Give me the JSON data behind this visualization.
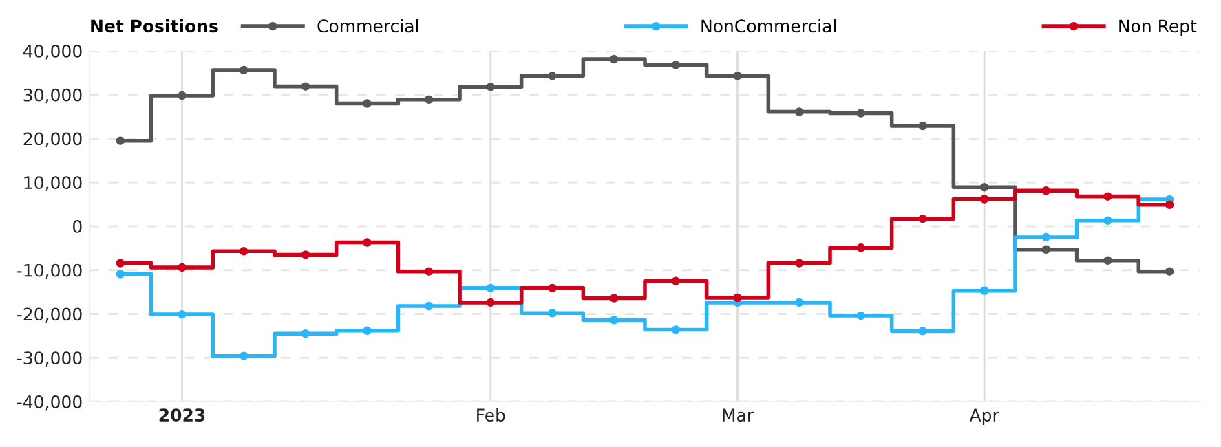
{
  "chart_data": {
    "type": "step",
    "legend_title": "Net Positions",
    "x": [
      "2022-12-27",
      "2023-01-03",
      "2023-01-10",
      "2023-01-17",
      "2023-01-24",
      "2023-01-31",
      "2023-02-07",
      "2023-02-14",
      "2023-02-21",
      "2023-02-28",
      "2023-03-07",
      "2023-03-14",
      "2023-03-21",
      "2023-03-28",
      "2023-04-04",
      "2023-04-11",
      "2023-04-18",
      "2023-04-25"
    ],
    "series": [
      {
        "name": "Commercial",
        "color": "#555555",
        "values": [
          19500,
          29800,
          35600,
          31900,
          28000,
          28900,
          31800,
          34300,
          38100,
          36800,
          34300,
          26100,
          25800,
          22900,
          8900,
          -5300,
          -7800,
          -10300
        ]
      },
      {
        "name": "NonCommercial",
        "color": "#29b6f6",
        "values": [
          -10900,
          -20100,
          -29600,
          -24500,
          -23800,
          -18200,
          -14100,
          -19800,
          -21400,
          -23600,
          -17400,
          -17400,
          -20400,
          -23900,
          -14700,
          -2500,
          1300,
          6100
        ]
      },
      {
        "name": "Non Rept",
        "color": "#d0021b",
        "values": [
          -8400,
          -9400,
          -5700,
          -6500,
          -3700,
          -10300,
          -17400,
          -14100,
          -16400,
          -12500,
          -16300,
          -8400,
          -4900,
          1700,
          6200,
          8100,
          6800,
          4900
        ]
      }
    ],
    "xlim": [
      "2022-12-23T12:00",
      "2023-04-28T12:00"
    ],
    "xticks": [
      {
        "value": "2023-01-03",
        "label": "2023"
      },
      {
        "value": "2023-02-07",
        "label": "Feb"
      },
      {
        "value": "2023-03-07",
        "label": "Mar"
      },
      {
        "value": "2023-04-04",
        "label": "Apr"
      }
    ],
    "ylim": [
      -40000,
      40000
    ],
    "yticks": [
      {
        "value": -40000,
        "label": "-40,000"
      },
      {
        "value": -30000,
        "label": "-30,000"
      },
      {
        "value": -20000,
        "label": "-20,000"
      },
      {
        "value": -10000,
        "label": "-10,000"
      },
      0,
      {
        "value": 10000,
        "label": "10,000"
      },
      {
        "value": 20000,
        "label": "20,000"
      },
      {
        "value": 30000,
        "label": "30,000"
      },
      {
        "value": 40000,
        "label": "40,000"
      }
    ],
    "grid": true,
    "legend": "top",
    "marker": "circle",
    "line_style": "solid"
  }
}
